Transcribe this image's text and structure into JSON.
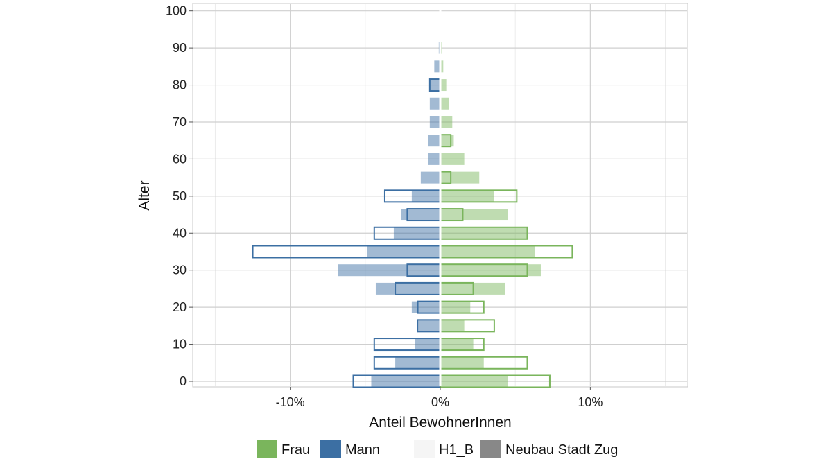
{
  "chart_data": {
    "type": "bar",
    "orientation": "horizontal",
    "subtype": "population-pyramid",
    "xlabel": "Anteil BewohnerInnen",
    "ylabel": "Alter",
    "x_ticks": [
      "-10%",
      "0%",
      "10%"
    ],
    "x_tick_values": [
      -10,
      0,
      10
    ],
    "xlim": [
      -16.5,
      16.5
    ],
    "y_ticks": [
      "0",
      "10",
      "20",
      "30",
      "40",
      "50",
      "60",
      "70",
      "80",
      "90",
      "100"
    ],
    "y_tick_values": [
      0,
      10,
      20,
      30,
      40,
      50,
      60,
      70,
      80,
      90,
      100
    ],
    "ylim": [
      -1.5,
      102
    ],
    "age_groups": [
      0,
      5,
      10,
      15,
      20,
      25,
      30,
      35,
      40,
      45,
      50,
      55,
      60,
      65,
      70,
      75,
      80,
      85,
      90,
      95
    ],
    "grid": true,
    "legend_position": "bottom",
    "legend": [
      {
        "label": "Frau",
        "color": "#7ab55c"
      },
      {
        "label": "Mann",
        "color": "#3c6fa3"
      },
      {
        "label": "H1_B",
        "color": "#f5f5f5"
      },
      {
        "label": "Neubau Stadt Zug",
        "color": "#888888"
      }
    ],
    "series": [
      {
        "name": "Mann",
        "group": "Neubau Stadt Zug",
        "style": "filled",
        "color": "#3c6fa3",
        "values": [
          -4.6,
          -3.0,
          -1.7,
          -1.4,
          -1.9,
          -4.3,
          -6.8,
          -4.9,
          -3.1,
          -2.6,
          -1.9,
          -1.3,
          -0.8,
          -0.8,
          -0.7,
          -0.7,
          -0.7,
          -0.4,
          -0.1,
          0
        ]
      },
      {
        "name": "Frau",
        "group": "Neubau Stadt Zug",
        "style": "filled",
        "color": "#7ab55c",
        "values": [
          4.5,
          2.9,
          2.2,
          1.6,
          2.0,
          4.3,
          6.7,
          6.3,
          5.8,
          4.5,
          3.6,
          2.6,
          1.6,
          0.9,
          0.8,
          0.6,
          0.4,
          0.2,
          0.1,
          0
        ]
      },
      {
        "name": "Mann",
        "group": "H1_B",
        "style": "outline",
        "color": "#3c6fa3",
        "values": [
          -5.8,
          -4.4,
          -4.4,
          -1.5,
          -1.5,
          -3.0,
          -2.2,
          -12.5,
          -4.4,
          -2.2,
          -3.7,
          0,
          0,
          0,
          0,
          0,
          -0.7,
          0,
          0,
          0
        ]
      },
      {
        "name": "Frau",
        "group": "H1_B",
        "style": "outline",
        "color": "#7ab55c",
        "values": [
          7.3,
          5.8,
          2.9,
          3.6,
          2.9,
          2.2,
          5.8,
          8.8,
          5.8,
          1.5,
          5.1,
          0.7,
          0,
          0.7,
          0,
          0,
          0,
          0,
          0,
          0
        ]
      }
    ]
  }
}
